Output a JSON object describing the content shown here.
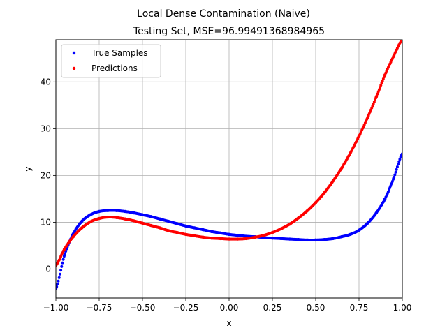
{
  "chart_data": {
    "type": "scatter",
    "suptitle": "Local Dense Contamination (Naive)",
    "title": "Testing Set, MSE=96.99491368984965",
    "xlabel": "x",
    "ylabel": "y",
    "xlim": [
      -1.0,
      1.0
    ],
    "ylim": [
      -6.2,
      49.0
    ],
    "xticks": [
      -1.0,
      -0.75,
      -0.5,
      -0.25,
      0.0,
      0.25,
      0.5,
      0.75,
      1.0
    ],
    "xtick_labels": [
      "−1.00",
      "−0.75",
      "−0.50",
      "−0.25",
      "0.00",
      "0.25",
      "0.50",
      "0.75",
      "1.00"
    ],
    "yticks": [
      0,
      10,
      20,
      30,
      40
    ],
    "ytick_labels": [
      "0",
      "10",
      "20",
      "30",
      "40"
    ],
    "grid": true,
    "legend_position": "top-left",
    "series": [
      {
        "name": "True Samples",
        "color": "#0000ff",
        "x": [
          -1.0,
          -0.95,
          -0.9,
          -0.85,
          -0.8,
          -0.75,
          -0.7,
          -0.65,
          -0.6,
          -0.55,
          -0.5,
          -0.45,
          -0.4,
          -0.35,
          -0.3,
          -0.25,
          -0.2,
          -0.15,
          -0.1,
          -0.05,
          0.0,
          0.05,
          0.1,
          0.15,
          0.2,
          0.25,
          0.3,
          0.35,
          0.4,
          0.45,
          0.5,
          0.55,
          0.6,
          0.65,
          0.7,
          0.75,
          0.8,
          0.85,
          0.9,
          0.95,
          1.0
        ],
        "y": [
          -4.2,
          3.0,
          7.5,
          10.2,
          11.6,
          12.3,
          12.5,
          12.5,
          12.3,
          12.0,
          11.6,
          11.2,
          10.7,
          10.2,
          9.7,
          9.2,
          8.8,
          8.4,
          8.0,
          7.7,
          7.4,
          7.2,
          7.0,
          6.9,
          6.7,
          6.6,
          6.5,
          6.4,
          6.3,
          6.2,
          6.2,
          6.3,
          6.5,
          6.9,
          7.4,
          8.3,
          9.8,
          12.0,
          15.0,
          19.4,
          24.6
        ]
      },
      {
        "name": "Predictions",
        "color": "#ff0000",
        "x": [
          -1.0,
          -0.95,
          -0.9,
          -0.85,
          -0.8,
          -0.75,
          -0.7,
          -0.65,
          -0.6,
          -0.55,
          -0.5,
          -0.45,
          -0.4,
          -0.35,
          -0.3,
          -0.25,
          -0.2,
          -0.15,
          -0.1,
          -0.05,
          0.0,
          0.05,
          0.1,
          0.15,
          0.2,
          0.25,
          0.3,
          0.35,
          0.4,
          0.45,
          0.5,
          0.55,
          0.6,
          0.65,
          0.7,
          0.75,
          0.8,
          0.85,
          0.9,
          0.95,
          1.0
        ],
        "y": [
          0.8,
          4.3,
          6.9,
          8.8,
          10.1,
          10.8,
          11.1,
          11.0,
          10.7,
          10.3,
          9.8,
          9.3,
          8.8,
          8.2,
          7.8,
          7.4,
          7.1,
          6.8,
          6.6,
          6.5,
          6.4,
          6.4,
          6.5,
          6.8,
          7.2,
          7.8,
          8.6,
          9.6,
          10.9,
          12.4,
          14.2,
          16.3,
          18.8,
          21.6,
          24.8,
          28.4,
          32.4,
          36.8,
          41.5,
          45.5,
          49.0
        ]
      }
    ]
  }
}
